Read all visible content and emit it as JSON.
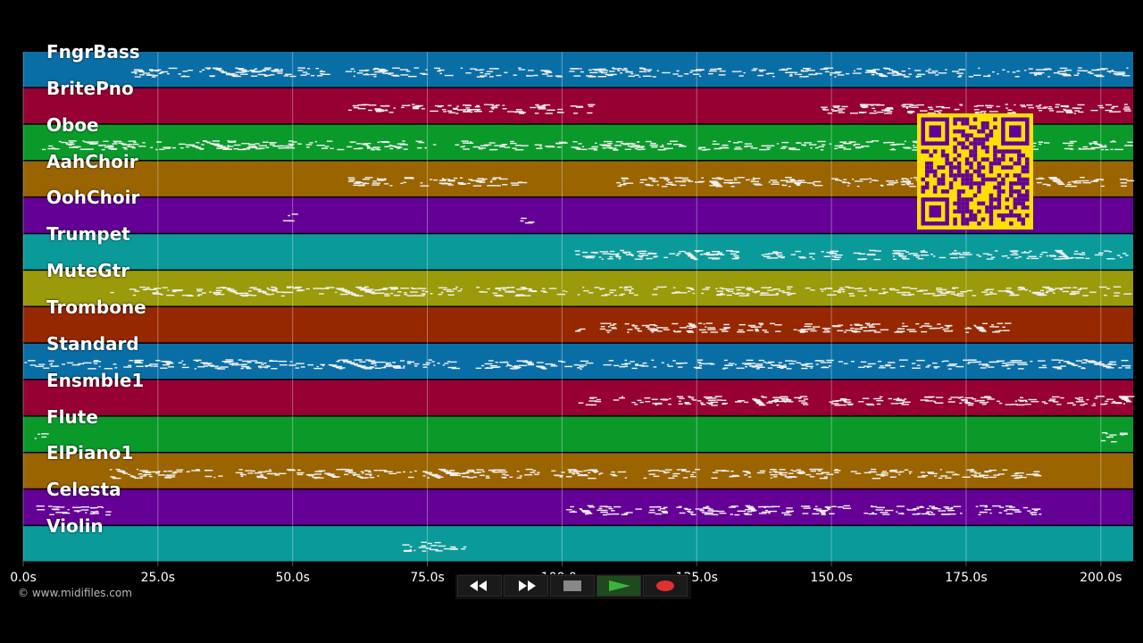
{
  "tracks": [
    {
      "name": "FngrBass",
      "color": "#0a6ea6"
    },
    {
      "name": "BritePno",
      "color": "#960032"
    },
    {
      "name": "Oboe",
      "color": "#0a9a2a"
    },
    {
      "name": "AahChoir",
      "color": "#9a6400"
    },
    {
      "name": "OohChoir",
      "color": "#640096"
    },
    {
      "name": "Trumpet",
      "color": "#0a9a9a"
    },
    {
      "name": "MuteGtr",
      "color": "#9a9a0a"
    },
    {
      "name": "Trombone",
      "color": "#962800"
    },
    {
      "name": "Standard",
      "color": "#0a6ea6"
    },
    {
      "name": "Ensmble1",
      "color": "#960032"
    },
    {
      "name": "Flute",
      "color": "#0a9a2a"
    },
    {
      "name": "ElPiano1",
      "color": "#9a6400"
    },
    {
      "name": "Celesta",
      "color": "#640096"
    },
    {
      "name": "Violin",
      "color": "#0a9a9a"
    }
  ],
  "timeline": {
    "max_seconds": 206,
    "ticks": [
      {
        "value": 0,
        "label": "0.0s"
      },
      {
        "value": 25,
        "label": "25.0s"
      },
      {
        "value": 50,
        "label": "50.0s"
      },
      {
        "value": 75,
        "label": "75.0s"
      },
      {
        "value": 100,
        "label": "100.0s"
      },
      {
        "value": 125,
        "label": "125.0s"
      },
      {
        "value": 150,
        "label": "150.0s"
      },
      {
        "value": 175,
        "label": "175.0s"
      },
      {
        "value": 200,
        "label": "200.0s"
      }
    ]
  },
  "credit": "© www.midifiles.com",
  "transport": {
    "rewind_icon": "rewind-icon",
    "forward_icon": "fast-forward-icon",
    "stop_icon": "stop-icon",
    "play_icon": "play-icon",
    "record_icon": "record-icon",
    "play_color": "#3cb43c",
    "record_color": "#e03030"
  },
  "qr": {
    "fg": "#000000",
    "bg": "#ffe000",
    "accent": "#640096"
  }
}
